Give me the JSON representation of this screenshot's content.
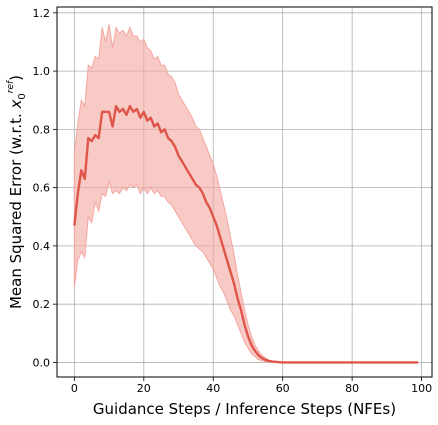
{
  "chart_data": {
    "type": "line",
    "xlabel": "Guidance Steps / Inference Steps (NFEs)",
    "ylabel_prefix": "Mean Squared Error (w.r.t. ",
    "ylabel_var": "x",
    "ylabel_sub": "0",
    "ylabel_sup": "ref",
    "ylabel_suffix": ")",
    "xlim": [
      -5,
      103
    ],
    "ylim": [
      -0.05,
      1.22
    ],
    "xticks": [
      0,
      20,
      40,
      60,
      80,
      100
    ],
    "yticks": [
      0.0,
      0.2,
      0.4,
      0.6,
      0.8,
      1.0,
      1.2
    ],
    "grid": true,
    "colors": {
      "line": "#e0554a",
      "band": "#f4a6a0",
      "grid": "#b0b0b0"
    },
    "x": [
      0,
      1,
      2,
      3,
      4,
      5,
      6,
      7,
      8,
      9,
      10,
      11,
      12,
      13,
      14,
      15,
      16,
      17,
      18,
      19,
      20,
      21,
      22,
      23,
      24,
      25,
      26,
      27,
      28,
      29,
      30,
      31,
      32,
      33,
      34,
      35,
      36,
      37,
      38,
      39,
      40,
      41,
      42,
      43,
      44,
      45,
      46,
      47,
      48,
      49,
      50,
      51,
      52,
      53,
      54,
      55,
      56,
      57,
      58,
      59,
      60,
      62,
      65,
      70,
      75,
      80,
      85,
      90,
      95,
      99
    ],
    "series": [
      {
        "mean": [
          0.47,
          0.58,
          0.66,
          0.63,
          0.77,
          0.76,
          0.78,
          0.77,
          0.86,
          0.86,
          0.86,
          0.81,
          0.88,
          0.86,
          0.87,
          0.85,
          0.88,
          0.86,
          0.87,
          0.84,
          0.86,
          0.83,
          0.84,
          0.81,
          0.82,
          0.79,
          0.8,
          0.77,
          0.76,
          0.74,
          0.71,
          0.69,
          0.67,
          0.65,
          0.63,
          0.61,
          0.6,
          0.58,
          0.55,
          0.53,
          0.5,
          0.47,
          0.43,
          0.39,
          0.35,
          0.31,
          0.27,
          0.22,
          0.18,
          0.13,
          0.09,
          0.06,
          0.04,
          0.025,
          0.015,
          0.009,
          0.005,
          0.003,
          0.002,
          0.001,
          0.0,
          0.0,
          0.0,
          0.0,
          0.0,
          0.0,
          0.0,
          0.0,
          0.0,
          0.0
        ],
        "upper": [
          0.72,
          0.82,
          0.9,
          0.88,
          1.02,
          1.01,
          1.05,
          1.04,
          1.15,
          1.1,
          1.16,
          1.08,
          1.15,
          1.13,
          1.14,
          1.12,
          1.15,
          1.12,
          1.12,
          1.1,
          1.11,
          1.08,
          1.07,
          1.04,
          1.05,
          1.02,
          1.02,
          0.99,
          0.98,
          0.96,
          0.92,
          0.9,
          0.88,
          0.86,
          0.84,
          0.81,
          0.8,
          0.77,
          0.74,
          0.71,
          0.68,
          0.64,
          0.59,
          0.54,
          0.49,
          0.43,
          0.37,
          0.3,
          0.24,
          0.18,
          0.13,
          0.09,
          0.06,
          0.04,
          0.025,
          0.015,
          0.008,
          0.005,
          0.003,
          0.002,
          0.001,
          0.0,
          0.0,
          0.0,
          0.0,
          0.0,
          0.0,
          0.0,
          0.0,
          0.0
        ],
        "lower": [
          0.26,
          0.35,
          0.38,
          0.36,
          0.5,
          0.48,
          0.55,
          0.52,
          0.58,
          0.57,
          0.62,
          0.58,
          0.59,
          0.58,
          0.6,
          0.59,
          0.61,
          0.6,
          0.61,
          0.58,
          0.6,
          0.58,
          0.6,
          0.58,
          0.59,
          0.57,
          0.57,
          0.55,
          0.54,
          0.52,
          0.5,
          0.48,
          0.46,
          0.44,
          0.42,
          0.4,
          0.39,
          0.38,
          0.36,
          0.34,
          0.32,
          0.29,
          0.26,
          0.24,
          0.21,
          0.18,
          0.16,
          0.13,
          0.1,
          0.07,
          0.05,
          0.03,
          0.02,
          0.01,
          0.006,
          0.003,
          0.002,
          0.001,
          0.0,
          0.0,
          0.0,
          0.0,
          0.0,
          0.0,
          0.0,
          0.0,
          0.0,
          0.0,
          0.0,
          0.0
        ]
      }
    ]
  }
}
